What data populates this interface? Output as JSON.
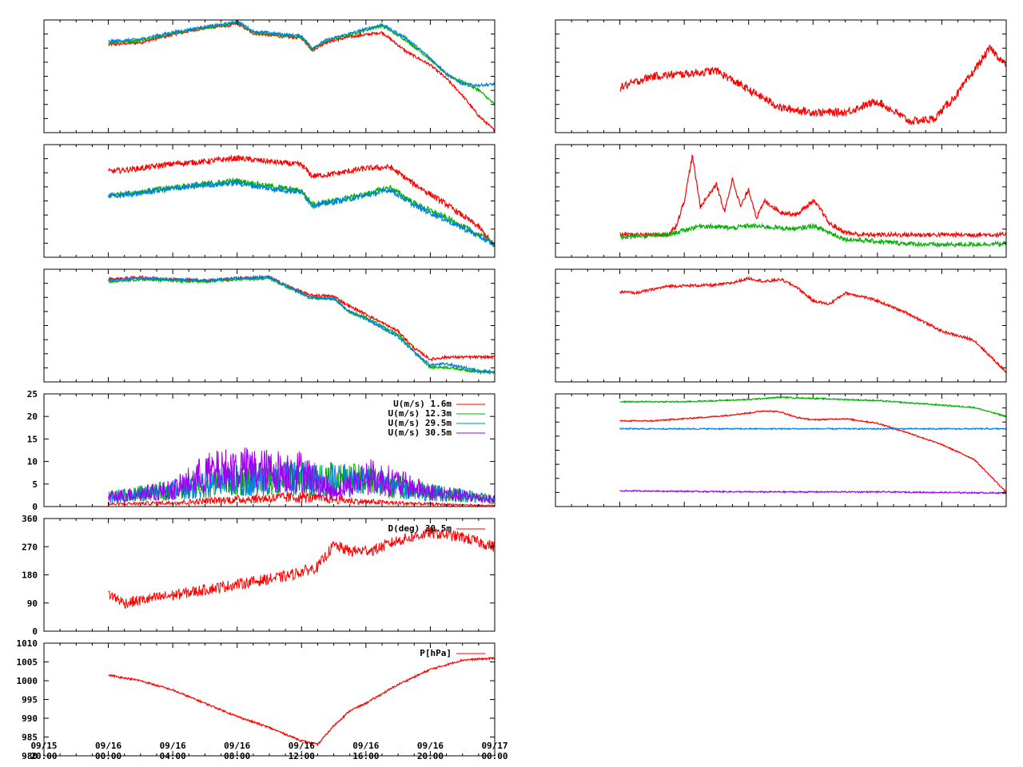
{
  "time_axis": {
    "start": "09/15 20:00",
    "end": "09/17 00:00",
    "ticks": [
      {
        "date": "09/15",
        "time": "20:00"
      },
      {
        "date": "09/16",
        "time": "00:00"
      },
      {
        "date": "09/16",
        "time": "04:00"
      },
      {
        "date": "09/16",
        "time": "08:00"
      },
      {
        "date": "09/16",
        "time": "12:00"
      },
      {
        "date": "09/16",
        "time": "16:00"
      },
      {
        "date": "09/16",
        "time": "20:00"
      },
      {
        "date": "09/17",
        "time": "00:00"
      }
    ],
    "data_start": "09/16 00:00"
  },
  "colors": {
    "red": "#ff0000",
    "green": "#00b000",
    "blue": "#0080e0",
    "purple": "#a000f0",
    "frame": "#000000"
  },
  "chart_data": [
    {
      "type": "line",
      "grid": false,
      "series": [
        {
          "color": "#ff0000",
          "x": [
            "09/16 00:00",
            "09/16 02:00",
            "09/16 04:00",
            "09/16 06:00",
            "09/16 07:30",
            "09/16 08:00",
            "09/16 09:00",
            "09/16 11:00",
            "09/16 12:00",
            "09/16 12:40",
            "09/16 13:30",
            "09/16 15:00",
            "09/16 17:00",
            "09/16 18:30",
            "09/16 20:00",
            "09/16 21:00",
            "09/16 22:00",
            "09/16 23:00",
            "09/16 23:59"
          ],
          "values": [
            0.78,
            0.8,
            0.87,
            0.93,
            0.95,
            0.97,
            0.88,
            0.85,
            0.84,
            0.73,
            0.8,
            0.85,
            0.89,
            0.72,
            0.6,
            0.48,
            0.33,
            0.15,
            0.02
          ]
        },
        {
          "color": "#00b000",
          "x": [
            "09/16 00:00",
            "09/16 02:00",
            "09/16 04:00",
            "09/16 06:00",
            "09/16 07:30",
            "09/16 08:00",
            "09/16 09:00",
            "09/16 11:00",
            "09/16 12:00",
            "09/16 12:40",
            "09/16 13:30",
            "09/16 15:00",
            "09/16 17:00",
            "09/16 18:30",
            "09/16 20:00",
            "09/16 21:00",
            "09/16 22:00",
            "09/16 23:00",
            "09/16 23:59"
          ],
          "values": [
            0.8,
            0.82,
            0.88,
            0.93,
            0.96,
            0.98,
            0.89,
            0.86,
            0.85,
            0.74,
            0.81,
            0.87,
            0.95,
            0.82,
            0.65,
            0.52,
            0.45,
            0.38,
            0.25
          ]
        },
        {
          "color": "#0080e0",
          "x": [
            "09/16 00:00",
            "09/16 02:00",
            "09/16 04:00",
            "09/16 06:00",
            "09/16 07:30",
            "09/16 08:00",
            "09/16 09:00",
            "09/16 11:00",
            "09/16 12:00",
            "09/16 12:40",
            "09/16 13:30",
            "09/16 15:00",
            "09/16 17:00",
            "09/16 18:30",
            "09/16 20:00",
            "09/16 21:00",
            "09/16 22:00",
            "09/16 23:00",
            "09/16 23:59"
          ],
          "values": [
            0.81,
            0.83,
            0.89,
            0.94,
            0.97,
            0.99,
            0.9,
            0.87,
            0.86,
            0.75,
            0.82,
            0.88,
            0.96,
            0.84,
            0.66,
            0.52,
            0.43,
            0.42,
            0.43
          ]
        }
      ]
    },
    {
      "type": "line",
      "grid": false,
      "series": [
        {
          "color": "#ff0000",
          "x": [
            "09/16 00:00",
            "09/16 02:00",
            "09/16 04:00",
            "09/16 06:00",
            "09/16 08:00",
            "09/16 10:00",
            "09/16 12:00",
            "09/16 12:40",
            "09/16 14:00",
            "09/16 16:00",
            "09/16 17:30",
            "09/16 19:00",
            "09/16 21:00",
            "09/16 23:00",
            "09/16 23:59"
          ],
          "values": [
            0.76,
            0.79,
            0.83,
            0.85,
            0.88,
            0.85,
            0.82,
            0.72,
            0.74,
            0.79,
            0.8,
            0.65,
            0.47,
            0.27,
            0.1
          ]
        },
        {
          "color": "#00b000",
          "x": [
            "09/16 00:00",
            "09/16 02:00",
            "09/16 04:00",
            "09/16 06:00",
            "09/16 08:00",
            "09/16 10:00",
            "09/16 12:00",
            "09/16 12:40",
            "09/16 14:00",
            "09/16 16:00",
            "09/16 17:30",
            "09/16 19:00",
            "09/16 21:00",
            "09/16 23:00",
            "09/16 23:59"
          ],
          "values": [
            0.55,
            0.58,
            0.62,
            0.65,
            0.68,
            0.63,
            0.59,
            0.47,
            0.5,
            0.56,
            0.62,
            0.48,
            0.35,
            0.2,
            0.12
          ]
        },
        {
          "color": "#0080e0",
          "x": [
            "09/16 00:00",
            "09/16 02:00",
            "09/16 04:00",
            "09/16 06:00",
            "09/16 08:00",
            "09/16 10:00",
            "09/16 12:00",
            "09/16 12:40",
            "09/16 14:00",
            "09/16 16:00",
            "09/16 17:30",
            "09/16 19:00",
            "09/16 21:00",
            "09/16 23:00",
            "09/16 23:59"
          ],
          "values": [
            0.54,
            0.57,
            0.61,
            0.64,
            0.66,
            0.61,
            0.58,
            0.46,
            0.49,
            0.55,
            0.6,
            0.46,
            0.33,
            0.19,
            0.11
          ]
        }
      ]
    },
    {
      "type": "line",
      "grid": false,
      "series": [
        {
          "color": "#ff0000",
          "x": [
            "09/16 00:00",
            "09/16 02:00",
            "09/16 04:00",
            "09/16 06:00",
            "09/16 08:00",
            "09/16 10:00",
            "09/16 11:00",
            "09/16 12:30",
            "09/16 14:00",
            "09/16 15:00",
            "09/16 16:00",
            "09/16 18:00",
            "09/16 19:00",
            "09/16 20:00",
            "09/16 21:00",
            "09/16 23:00",
            "09/16 23:59"
          ],
          "values": [
            0.91,
            0.93,
            0.91,
            0.9,
            0.92,
            0.93,
            0.86,
            0.77,
            0.76,
            0.67,
            0.6,
            0.45,
            0.3,
            0.2,
            0.22,
            0.22,
            0.22
          ]
        },
        {
          "color": "#00b000",
          "x": [
            "09/16 00:00",
            "09/16 02:00",
            "09/16 04:00",
            "09/16 06:00",
            "09/16 08:00",
            "09/16 10:00",
            "09/16 11:00",
            "09/16 12:30",
            "09/16 14:00",
            "09/16 15:00",
            "09/16 16:00",
            "09/16 18:00",
            "09/16 19:00",
            "09/16 20:00",
            "09/16 21:00",
            "09/16 23:00",
            "09/16 23:59"
          ],
          "values": [
            0.89,
            0.91,
            0.9,
            0.89,
            0.91,
            0.92,
            0.85,
            0.75,
            0.74,
            0.62,
            0.57,
            0.42,
            0.27,
            0.13,
            0.13,
            0.09,
            0.08
          ]
        },
        {
          "color": "#0080e0",
          "x": [
            "09/16 00:00",
            "09/16 02:00",
            "09/16 04:00",
            "09/16 06:00",
            "09/16 08:00",
            "09/16 10:00",
            "09/16 11:00",
            "09/16 12:30",
            "09/16 14:00",
            "09/16 15:00",
            "09/16 16:00",
            "09/16 18:00",
            "09/16 19:00",
            "09/16 20:00",
            "09/16 21:00",
            "09/16 23:00",
            "09/16 23:59"
          ],
          "values": [
            0.9,
            0.92,
            0.91,
            0.9,
            0.92,
            0.93,
            0.86,
            0.75,
            0.74,
            0.62,
            0.56,
            0.4,
            0.26,
            0.15,
            0.16,
            0.1,
            0.09
          ]
        }
      ]
    },
    {
      "type": "line",
      "ylim": [
        0,
        25
      ],
      "yticks": [
        "0",
        "5",
        "10",
        "15",
        "20",
        "25"
      ],
      "grid": false,
      "legend": "top-right",
      "series": [
        {
          "name": "U(m/s)  1.6m",
          "color": "#ff0000",
          "x": [
            "09/16 00:00",
            "09/16 04:00",
            "09/16 08:00",
            "09/16 12:00",
            "09/16 16:00",
            "09/16 20:00",
            "09/16 23:59"
          ],
          "values": [
            0.5,
            0.8,
            1.5,
            2.0,
            1.0,
            0.5,
            0.2
          ]
        },
        {
          "name": "U(m/s) 12.3m",
          "color": "#00b000",
          "x": [
            "09/16 00:00",
            "09/16 04:00",
            "09/16 08:00",
            "09/16 12:00",
            "09/16 16:00",
            "09/16 20:00",
            "09/16 23:59"
          ],
          "values": [
            2.0,
            3.5,
            5.5,
            6.0,
            5.5,
            3.0,
            1.5
          ]
        },
        {
          "name": "U(m/s) 29.5m",
          "color": "#0080e0",
          "x": [
            "09/16 00:00",
            "09/16 04:00",
            "09/16 08:00",
            "09/16 12:00",
            "09/16 16:00",
            "09/16 20:00",
            "09/16 23:59"
          ],
          "values": [
            2.0,
            3.5,
            5.5,
            6.0,
            5.5,
            3.0,
            1.5
          ]
        },
        {
          "name": "U(m/s) 30.5m",
          "color": "#a000f0",
          "x": [
            "09/16 00:00",
            "09/16 04:00",
            "09/16 06:00",
            "09/16 08:00",
            "09/16 10:00",
            "09/16 12:00",
            "09/16 14:00",
            "09/16 16:00",
            "09/16 18:00",
            "09/16 20:00",
            "09/16 23:59"
          ],
          "values": [
            2.0,
            3.5,
            7.0,
            8.0,
            7.5,
            7.5,
            3.0,
            6.5,
            5.0,
            3.0,
            1.5
          ]
        }
      ]
    },
    {
      "type": "line",
      "ylim": [
        0,
        360
      ],
      "yticks": [
        "0",
        "90",
        "180",
        "270",
        "360"
      ],
      "grid": false,
      "legend": "top-right",
      "series": [
        {
          "name": "D(deg) 30.5m",
          "color": "#ff0000",
          "x": [
            "09/16 00:00",
            "09/16 01:00",
            "09/16 04:00",
            "09/16 08:00",
            "09/16 11:00",
            "09/16 13:00",
            "09/16 14:00",
            "09/16 15:00",
            "09/16 16:30",
            "09/16 18:00",
            "09/16 20:00",
            "09/16 22:00",
            "09/16 23:59"
          ],
          "values": [
            120,
            90,
            115,
            150,
            175,
            205,
            275,
            255,
            260,
            290,
            315,
            300,
            270
          ]
        }
      ]
    },
    {
      "type": "line",
      "ylim": [
        980,
        1010
      ],
      "yticks": [
        "980",
        "985",
        "990",
        "995",
        "1000",
        "1005",
        "1010"
      ],
      "grid": false,
      "legend": "top-right",
      "series": [
        {
          "name": "P[hPa]",
          "color": "#ff0000",
          "x": [
            "09/16 00:00",
            "09/16 02:00",
            "09/16 04:00",
            "09/16 06:00",
            "09/16 08:00",
            "09/16 10:00",
            "09/16 12:00",
            "09/16 13:00",
            "09/16 14:00",
            "09/16 15:00",
            "09/16 16:00",
            "09/16 18:00",
            "09/16 20:00",
            "09/16 22:00",
            "09/16 23:59"
          ],
          "values": [
            1001.5,
            1000,
            997.5,
            994,
            990.5,
            987.5,
            984,
            983,
            988,
            992,
            994,
            999,
            1003,
            1005.5,
            1006
          ]
        }
      ]
    },
    {
      "type": "line",
      "grid": false,
      "series": [
        {
          "color": "#ff0000",
          "x": [
            "09/16 00:00",
            "09/16 02:00",
            "09/16 04:00",
            "09/16 06:00",
            "09/16 08:00",
            "09/16 10:00",
            "09/16 12:00",
            "09/16 14:00",
            "09/16 16:00",
            "09/16 18:00",
            "09/16 19:30",
            "09/16 21:00",
            "09/16 22:00",
            "09/16 23:00",
            "09/16 23:59"
          ],
          "values": [
            0.4,
            0.5,
            0.52,
            0.55,
            0.38,
            0.22,
            0.18,
            0.18,
            0.28,
            0.1,
            0.12,
            0.35,
            0.55,
            0.75,
            0.6
          ]
        }
      ]
    },
    {
      "type": "line",
      "grid": false,
      "series": [
        {
          "color": "#ff0000",
          "x": [
            "09/16 00:00",
            "09/16 03:00",
            "09/16 03:30",
            "09/16 04:00",
            "09/16 04:30",
            "09/16 05:00",
            "09/16 06:00",
            "09/16 06:30",
            "09/16 07:00",
            "09/16 07:30",
            "09/16 08:00",
            "09/16 08:30",
            "09/16 09:00",
            "09/16 10:00",
            "09/16 11:00",
            "09/16 12:00",
            "09/16 12:30",
            "09/16 13:00",
            "09/16 14:00",
            "09/16 15:00",
            "09/16 16:00",
            "09/16 17:00",
            "09/16 23:59"
          ],
          "values": [
            0.2,
            0.2,
            0.28,
            0.5,
            0.9,
            0.45,
            0.65,
            0.4,
            0.7,
            0.45,
            0.6,
            0.35,
            0.5,
            0.4,
            0.38,
            0.5,
            0.42,
            0.3,
            0.22,
            0.2,
            0.2,
            0.2,
            0.2
          ]
        },
        {
          "color": "#00b000",
          "x": [
            "09/16 00:00",
            "09/16 03:00",
            "09/16 04:00",
            "09/16 05:00",
            "09/16 06:00",
            "09/16 07:00",
            "09/16 08:00",
            "09/16 09:00",
            "09/16 10:00",
            "09/16 11:00",
            "09/16 12:00",
            "09/16 13:00",
            "09/16 14:00",
            "09/16 16:00",
            "09/16 18:00",
            "09/16 20:00",
            "09/16 23:59"
          ],
          "values": [
            0.18,
            0.2,
            0.24,
            0.28,
            0.27,
            0.26,
            0.28,
            0.27,
            0.26,
            0.25,
            0.28,
            0.22,
            0.16,
            0.14,
            0.12,
            0.11,
            0.12
          ]
        }
      ]
    },
    {
      "type": "line",
      "grid": false,
      "series": [
        {
          "color": "#ff0000",
          "x": [
            "09/16 00:00",
            "09/16 01:00",
            "09/16 03:00",
            "09/16 06:00",
            "09/16 07:00",
            "09/16 08:00",
            "09/16 09:00",
            "09/16 10:00",
            "09/16 11:00",
            "09/16 12:00",
            "09/16 13:00",
            "09/16 14:00",
            "09/16 15:00",
            "09/16 16:00",
            "09/16 18:00",
            "09/16 20:00",
            "09/16 22:00",
            "09/16 23:59"
          ],
          "values": [
            0.8,
            0.79,
            0.85,
            0.86,
            0.88,
            0.92,
            0.89,
            0.91,
            0.84,
            0.72,
            0.69,
            0.79,
            0.76,
            0.72,
            0.6,
            0.45,
            0.37,
            0.09
          ]
        }
      ]
    },
    {
      "type": "line",
      "grid": false,
      "series": [
        {
          "color": "#00b000",
          "x": [
            "09/16 00:00",
            "09/16 04:00",
            "09/16 08:00",
            "09/16 10:00",
            "09/16 12:00",
            "09/16 16:00",
            "09/16 20:00",
            "09/16 22:00",
            "09/16 23:59"
          ],
          "values": [
            0.93,
            0.93,
            0.95,
            0.97,
            0.96,
            0.94,
            0.9,
            0.88,
            0.8
          ]
        },
        {
          "color": "#ff0000",
          "x": [
            "09/16 00:00",
            "09/16 02:00",
            "09/16 04:00",
            "09/16 06:00",
            "09/16 08:00",
            "09/16 09:00",
            "09/16 10:00",
            "09/16 11:00",
            "09/16 12:00",
            "09/16 14:00",
            "09/16 16:00",
            "09/16 18:00",
            "09/16 20:00",
            "09/16 22:00",
            "09/16 23:59"
          ],
          "values": [
            0.76,
            0.76,
            0.78,
            0.8,
            0.83,
            0.85,
            0.84,
            0.79,
            0.77,
            0.78,
            0.74,
            0.65,
            0.55,
            0.42,
            0.13
          ]
        },
        {
          "color": "#0080e0",
          "x": [
            "09/16 00:00",
            "09/16 08:00",
            "09/16 16:00",
            "09/16 23:59"
          ],
          "values": [
            0.69,
            0.69,
            0.69,
            0.69
          ]
        },
        {
          "color": "#a000f0",
          "x": [
            "09/16 00:00",
            "09/16 08:00",
            "09/16 16:00",
            "09/16 23:59"
          ],
          "values": [
            0.14,
            0.13,
            0.13,
            0.12
          ]
        }
      ]
    }
  ]
}
